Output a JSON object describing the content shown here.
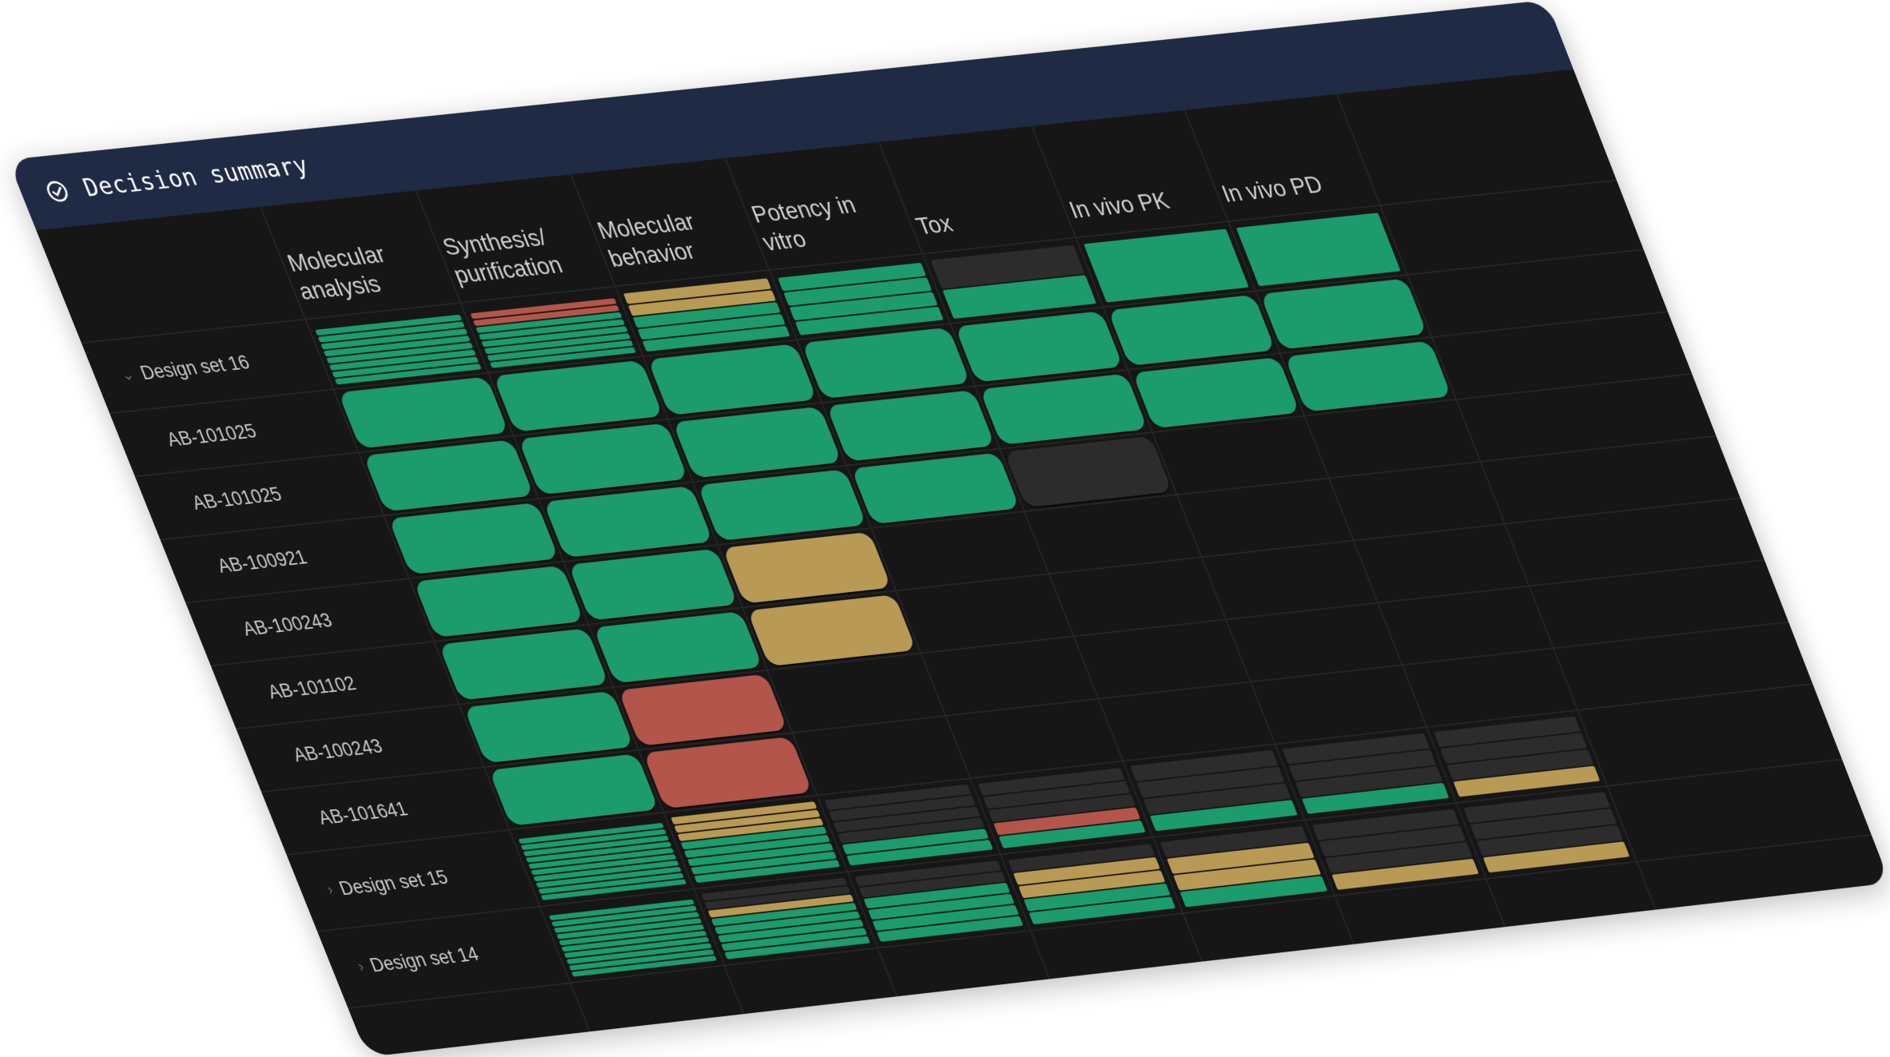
{
  "header": {
    "title": "Decision summary",
    "icon": "check-circle-icon"
  },
  "columns": [
    "Molecular analysis",
    "Synthesis/ purification",
    "Molecular behavior",
    "Potency in vitro",
    "Tox",
    "In vivo PK",
    "In vivo PD"
  ],
  "colors": {
    "pass": "#1c9b6c",
    "warn": "#b89a54",
    "fail": "#b3554a",
    "pending": "#2c2c2c",
    "empty": "#161616",
    "header": "#1f2a44",
    "background": "#161616"
  },
  "groups": [
    {
      "name": "Design set 16",
      "expanded": true,
      "summary": [
        [
          "fail",
          "fail",
          "pass",
          "pass",
          "pass",
          "pass",
          "pass",
          "pass"
        ],
        [
          "warn",
          "warn",
          "pass",
          "pass",
          "pass"
        ],
        [
          "pass",
          "pass",
          "pass",
          "pass"
        ],
        [
          "pending",
          "pass"
        ],
        [
          "pass"
        ],
        [
          "pass"
        ]
      ],
      "summary_first": [
        "pass",
        "pass",
        "pass",
        "pass",
        "pass",
        "pass",
        "pass",
        "pass"
      ],
      "rows": [
        {
          "label": "AB-101025",
          "cells": [
            "pass",
            "pass",
            "pass",
            "pass",
            "pass",
            "pass",
            "pass"
          ]
        },
        {
          "label": "AB-101025",
          "cells": [
            "pass",
            "pass",
            "pass",
            "pass",
            "pass",
            "pass",
            "pass"
          ]
        },
        {
          "label": "AB-100921",
          "cells": [
            "pass",
            "pass",
            "pass",
            "pass",
            "pending",
            "empty",
            "empty"
          ]
        },
        {
          "label": "AB-100243",
          "cells": [
            "pass",
            "pass",
            "warn",
            "empty",
            "empty",
            "empty",
            "empty"
          ]
        },
        {
          "label": "AB-101102",
          "cells": [
            "pass",
            "pass",
            "warn",
            "empty",
            "empty",
            "empty",
            "empty"
          ]
        },
        {
          "label": "AB-100243",
          "cells": [
            "pass",
            "fail",
            "empty",
            "empty",
            "empty",
            "empty",
            "empty"
          ]
        },
        {
          "label": "AB-101641",
          "cells": [
            "pass",
            "fail",
            "empty",
            "empty",
            "empty",
            "empty",
            "empty"
          ]
        }
      ]
    },
    {
      "name": "Design set 15",
      "expanded": false,
      "summary_all": [
        [
          "pass",
          "pass",
          "pass",
          "pass",
          "pass",
          "pass",
          "pass",
          "pass",
          "pass",
          "pass"
        ],
        [
          "warn",
          "warn",
          "warn",
          "pass",
          "pass",
          "pass",
          "pass",
          "pass"
        ],
        [
          "pending",
          "pending",
          "pending",
          "pending",
          "pass",
          "pass"
        ],
        [
          "pending",
          "pending",
          "pending",
          "fail",
          "pass"
        ],
        [
          "pending",
          "pending",
          "pending",
          "pass"
        ],
        [
          "pending",
          "pending",
          "pending",
          "pass"
        ],
        [
          "pending",
          "pending",
          "pending",
          "warn"
        ]
      ]
    },
    {
      "name": "Design set 14",
      "expanded": false,
      "summary_all": [
        [
          "pass",
          "pass",
          "pass",
          "pass",
          "pass",
          "pass",
          "pass",
          "pass",
          "pass",
          "pass"
        ],
        [
          "pending",
          "pending",
          "warn",
          "pass",
          "pass",
          "pass",
          "pass",
          "pass"
        ],
        [
          "pending",
          "pending",
          "pass",
          "pass",
          "pass",
          "pass"
        ],
        [
          "pending",
          "warn",
          "warn",
          "pass",
          "pass"
        ],
        [
          "pending",
          "warn",
          "warn",
          "pass"
        ],
        [
          "pending",
          "pending",
          "pending",
          "warn"
        ],
        [
          "pending",
          "pending",
          "pending",
          "warn"
        ]
      ]
    }
  ]
}
